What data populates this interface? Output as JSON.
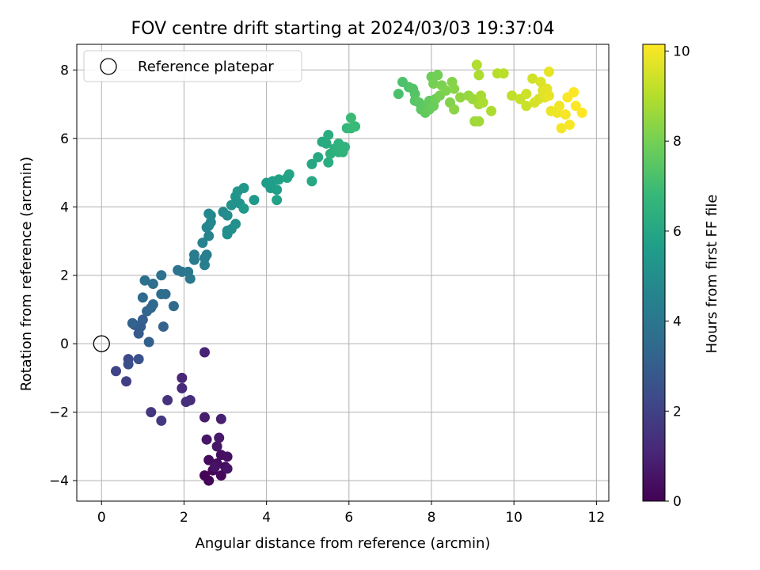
{
  "chart_data": {
    "type": "scatter",
    "title": "FOV centre drift starting at 2024/03/03 19:37:04",
    "xlabel": "Angular distance from reference (arcmin)",
    "ylabel": "Rotation from reference (arcmin)",
    "colorbar_label": "Hours from first FF file",
    "xlim": [
      -0.6,
      12.3
    ],
    "ylim": [
      -4.6,
      8.75
    ],
    "clim": [
      0,
      10.15
    ],
    "xticks": [
      0,
      2,
      4,
      6,
      8,
      10,
      12
    ],
    "yticks": [
      -4,
      -2,
      0,
      2,
      4,
      6,
      8
    ],
    "cticks": [
      0,
      2,
      4,
      6,
      8,
      10
    ],
    "grid": true,
    "legend": {
      "placement": "top-left",
      "entries": [
        {
          "label": "Reference platepar"
        }
      ]
    },
    "colormap": [
      "#440154",
      "#482878",
      "#3e4989",
      "#31688e",
      "#26828e",
      "#1f9e89",
      "#35b779",
      "#6ece58",
      "#b5de2b",
      "#fde725"
    ],
    "reference_point": {
      "x": 0,
      "y": 0
    },
    "points": [
      [
        2.5,
        -3.85,
        0.05
      ],
      [
        2.6,
        -4.0,
        0.1
      ],
      [
        2.7,
        -3.7,
        0.15
      ],
      [
        2.9,
        -3.85,
        0.2
      ],
      [
        3.0,
        -3.6,
        0.25
      ],
      [
        2.6,
        -3.4,
        0.3
      ],
      [
        2.8,
        -3.5,
        0.35
      ],
      [
        2.9,
        -3.25,
        0.4
      ],
      [
        3.05,
        -3.3,
        0.45
      ],
      [
        2.75,
        -3.6,
        0.5
      ],
      [
        3.05,
        -3.65,
        0.55
      ],
      [
        2.8,
        -3.0,
        0.6
      ],
      [
        2.55,
        -2.8,
        0.65
      ],
      [
        2.85,
        -2.75,
        0.7
      ],
      [
        2.5,
        -2.15,
        0.8
      ],
      [
        2.9,
        -2.2,
        0.9
      ],
      [
        2.5,
        -0.25,
        1.0
      ],
      [
        1.95,
        -1.0,
        1.1
      ],
      [
        1.95,
        -1.3,
        1.2
      ],
      [
        2.15,
        -1.65,
        1.3
      ],
      [
        2.05,
        -1.7,
        1.4
      ],
      [
        1.6,
        -1.65,
        1.5
      ],
      [
        1.2,
        -2.0,
        1.6
      ],
      [
        1.45,
        -2.25,
        1.7
      ],
      [
        0.6,
        -1.1,
        1.9
      ],
      [
        0.35,
        -0.8,
        2.1
      ],
      [
        0.65,
        -0.45,
        2.3
      ],
      [
        0.65,
        -0.6,
        2.45
      ],
      [
        0.9,
        -0.45,
        2.6
      ],
      [
        0.8,
        0.55,
        2.8
      ],
      [
        0.9,
        0.3,
        2.9
      ],
      [
        0.95,
        0.5,
        3.0
      ],
      [
        1.0,
        0.7,
        3.05
      ],
      [
        1.15,
        0.05,
        3.1
      ],
      [
        1.5,
        0.5,
        3.15
      ],
      [
        0.75,
        0.6,
        3.2
      ],
      [
        1.1,
        0.95,
        3.3
      ],
      [
        1.2,
        1.05,
        3.35
      ],
      [
        1.25,
        1.15,
        3.4
      ],
      [
        1.0,
        1.35,
        3.45
      ],
      [
        1.75,
        1.1,
        3.5
      ],
      [
        1.45,
        1.45,
        3.55
      ],
      [
        1.55,
        1.45,
        3.6
      ],
      [
        1.25,
        1.75,
        3.7
      ],
      [
        1.05,
        1.85,
        3.75
      ],
      [
        1.45,
        2.0,
        3.8
      ],
      [
        1.85,
        2.15,
        3.9
      ],
      [
        1.95,
        2.1,
        4.0
      ],
      [
        2.1,
        2.1,
        4.05
      ],
      [
        2.15,
        1.9,
        4.1
      ],
      [
        2.25,
        2.45,
        4.2
      ],
      [
        2.25,
        2.6,
        4.25
      ],
      [
        2.5,
        2.5,
        4.3
      ],
      [
        2.55,
        2.6,
        4.35
      ],
      [
        2.5,
        2.3,
        4.4
      ],
      [
        2.45,
        2.95,
        4.5
      ],
      [
        2.6,
        3.15,
        4.55
      ],
      [
        2.6,
        3.45,
        4.6
      ],
      [
        2.55,
        3.4,
        4.65
      ],
      [
        2.65,
        3.55,
        4.7
      ],
      [
        2.65,
        3.75,
        4.75
      ],
      [
        2.6,
        3.8,
        4.8
      ],
      [
        2.95,
        3.85,
        4.85
      ],
      [
        3.05,
        3.75,
        4.9
      ],
      [
        3.05,
        3.3,
        4.95
      ],
      [
        3.05,
        3.2,
        5.0
      ],
      [
        3.15,
        3.35,
        5.05
      ],
      [
        3.25,
        3.5,
        5.1
      ],
      [
        3.15,
        4.05,
        5.15
      ],
      [
        3.35,
        4.1,
        5.2
      ],
      [
        3.25,
        4.3,
        5.25
      ],
      [
        3.3,
        4.45,
        5.3
      ],
      [
        3.45,
        4.55,
        5.35
      ],
      [
        3.45,
        3.95,
        5.4
      ],
      [
        3.7,
        4.2,
        5.45
      ],
      [
        4.0,
        4.7,
        5.55
      ],
      [
        4.1,
        4.55,
        5.6
      ],
      [
        4.15,
        4.75,
        5.65
      ],
      [
        4.25,
        4.5,
        5.7
      ],
      [
        4.3,
        4.8,
        5.75
      ],
      [
        4.25,
        4.2,
        5.8
      ],
      [
        4.5,
        4.85,
        5.85
      ],
      [
        4.55,
        4.95,
        5.9
      ],
      [
        5.1,
        5.25,
        6.0
      ],
      [
        5.1,
        4.75,
        6.05
      ],
      [
        5.25,
        5.45,
        6.1
      ],
      [
        5.35,
        5.9,
        6.15
      ],
      [
        5.45,
        5.85,
        6.2
      ],
      [
        5.5,
        6.1,
        6.25
      ],
      [
        5.5,
        5.3,
        6.3
      ],
      [
        5.55,
        5.55,
        6.35
      ],
      [
        5.65,
        5.7,
        6.4
      ],
      [
        5.75,
        5.6,
        6.45
      ],
      [
        5.75,
        5.85,
        6.5
      ],
      [
        5.85,
        5.6,
        6.55
      ],
      [
        5.9,
        5.75,
        6.6
      ],
      [
        5.95,
        6.3,
        6.7
      ],
      [
        6.05,
        6.3,
        6.8
      ],
      [
        6.15,
        6.35,
        6.85
      ],
      [
        6.05,
        6.6,
        6.9
      ],
      [
        7.2,
        7.3,
        7.2
      ],
      [
        7.3,
        7.65,
        7.25
      ],
      [
        7.45,
        7.5,
        7.3
      ],
      [
        7.55,
        7.45,
        7.35
      ],
      [
        7.6,
        7.3,
        7.4
      ],
      [
        7.6,
        7.1,
        7.45
      ],
      [
        7.7,
        7.05,
        7.5
      ],
      [
        7.75,
        6.85,
        7.55
      ],
      [
        7.85,
        6.95,
        7.6
      ],
      [
        7.85,
        6.75,
        7.65
      ],
      [
        7.95,
        7.1,
        7.7
      ],
      [
        7.95,
        6.85,
        7.75
      ],
      [
        8.05,
        6.95,
        7.8
      ],
      [
        8.1,
        7.15,
        7.85
      ],
      [
        8.0,
        7.8,
        7.9
      ],
      [
        8.15,
        7.85,
        7.95
      ],
      [
        8.05,
        7.6,
        8.0
      ],
      [
        8.2,
        7.25,
        8.05
      ],
      [
        8.25,
        7.55,
        8.1
      ],
      [
        8.35,
        7.4,
        8.15
      ],
      [
        8.45,
        7.05,
        8.2
      ],
      [
        8.5,
        7.65,
        8.25
      ],
      [
        8.55,
        7.45,
        8.3
      ],
      [
        8.55,
        6.85,
        8.35
      ],
      [
        8.7,
        7.2,
        8.45
      ],
      [
        8.9,
        7.25,
        8.5
      ],
      [
        9.0,
        7.15,
        8.6
      ],
      [
        9.05,
        6.5,
        8.65
      ],
      [
        9.15,
        6.5,
        8.7
      ],
      [
        9.15,
        7.0,
        8.75
      ],
      [
        9.2,
        7.25,
        8.8
      ],
      [
        9.25,
        7.05,
        8.85
      ],
      [
        9.45,
        6.8,
        8.9
      ],
      [
        9.15,
        7.85,
        8.9
      ],
      [
        9.1,
        8.15,
        8.95
      ],
      [
        9.6,
        7.9,
        9.05
      ],
      [
        9.75,
        7.9,
        9.1
      ],
      [
        9.95,
        7.25,
        9.2
      ],
      [
        10.15,
        7.15,
        9.3
      ],
      [
        10.3,
        6.95,
        9.35
      ],
      [
        10.3,
        7.3,
        9.4
      ],
      [
        10.45,
        7.75,
        9.45
      ],
      [
        10.5,
        7.05,
        9.5
      ],
      [
        10.6,
        7.15,
        9.55
      ],
      [
        10.65,
        7.65,
        9.6
      ],
      [
        10.7,
        7.4,
        9.65
      ],
      [
        10.75,
        7.2,
        9.7
      ],
      [
        10.8,
        7.45,
        9.75
      ],
      [
        10.85,
        7.25,
        9.8
      ],
      [
        10.85,
        7.95,
        9.8
      ],
      [
        10.9,
        6.8,
        9.85
      ],
      [
        11.05,
        6.75,
        9.9
      ],
      [
        11.1,
        6.95,
        9.95
      ],
      [
        11.15,
        6.3,
        10.0
      ],
      [
        11.25,
        6.7,
        10.05
      ],
      [
        11.35,
        6.4,
        10.05
      ],
      [
        11.3,
        7.2,
        10.1
      ],
      [
        11.45,
        7.35,
        10.1
      ],
      [
        11.5,
        6.95,
        10.12
      ],
      [
        11.65,
        6.75,
        10.15
      ]
    ]
  }
}
